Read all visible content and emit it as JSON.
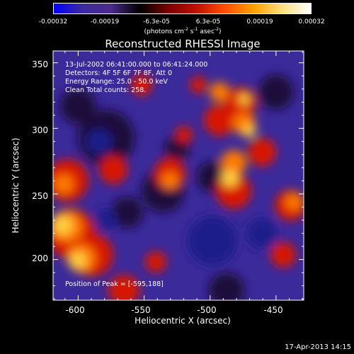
{
  "colorbar": {
    "ticks": [
      "-0.00032",
      "-0.00019",
      "-6.3e-05",
      "6.3e-05",
      "0.00019",
      "0.00032"
    ],
    "unit_prefix": "(photons cm",
    "unit_exp1": "-2",
    "unit_mid": " s",
    "unit_exp2": "-1",
    "unit_mid2": " asec",
    "unit_exp3": "-2",
    "unit_suffix": ")",
    "colors": [
      "#0000ff",
      "#3d2b9d",
      "#4b2a8c",
      "#000000",
      "#7a0000",
      "#c01000",
      "#ff5000",
      "#ffa000",
      "#ffe080",
      "#ffffff"
    ]
  },
  "title": "Reconstructed RHESSI Image",
  "annotations": {
    "time": "13-Jul-2002 06:41:00.000 to 06:41:24.000",
    "detectors": "Detectors: 4F 5F 6F 7F 8F, Att 0",
    "energy": "Energy Range: 25.0 - 50.0 keV",
    "clean": "Clean     Total counts: 258.",
    "peak": "Position of Peak = [-595,188]"
  },
  "axes": {
    "x_label": "Heliocentric X (arcsec)",
    "y_label": "Heliocentric Y (arcsec)",
    "x_ticks": [
      "-600",
      "-550",
      "-500",
      "-450"
    ],
    "y_ticks": [
      "350",
      "300",
      "250",
      "200"
    ],
    "xlim": [
      -619,
      -429
    ],
    "ylim": [
      169,
      359
    ]
  },
  "image_colors": {
    "background": "#3b2a9a",
    "deep": "#1a1a8a",
    "dark": "#1b0d3a",
    "red": "#d81800",
    "orange": "#ff7a00",
    "yellow": "#ffd040"
  },
  "timestamp": "17-Apr-2013 14:15"
}
